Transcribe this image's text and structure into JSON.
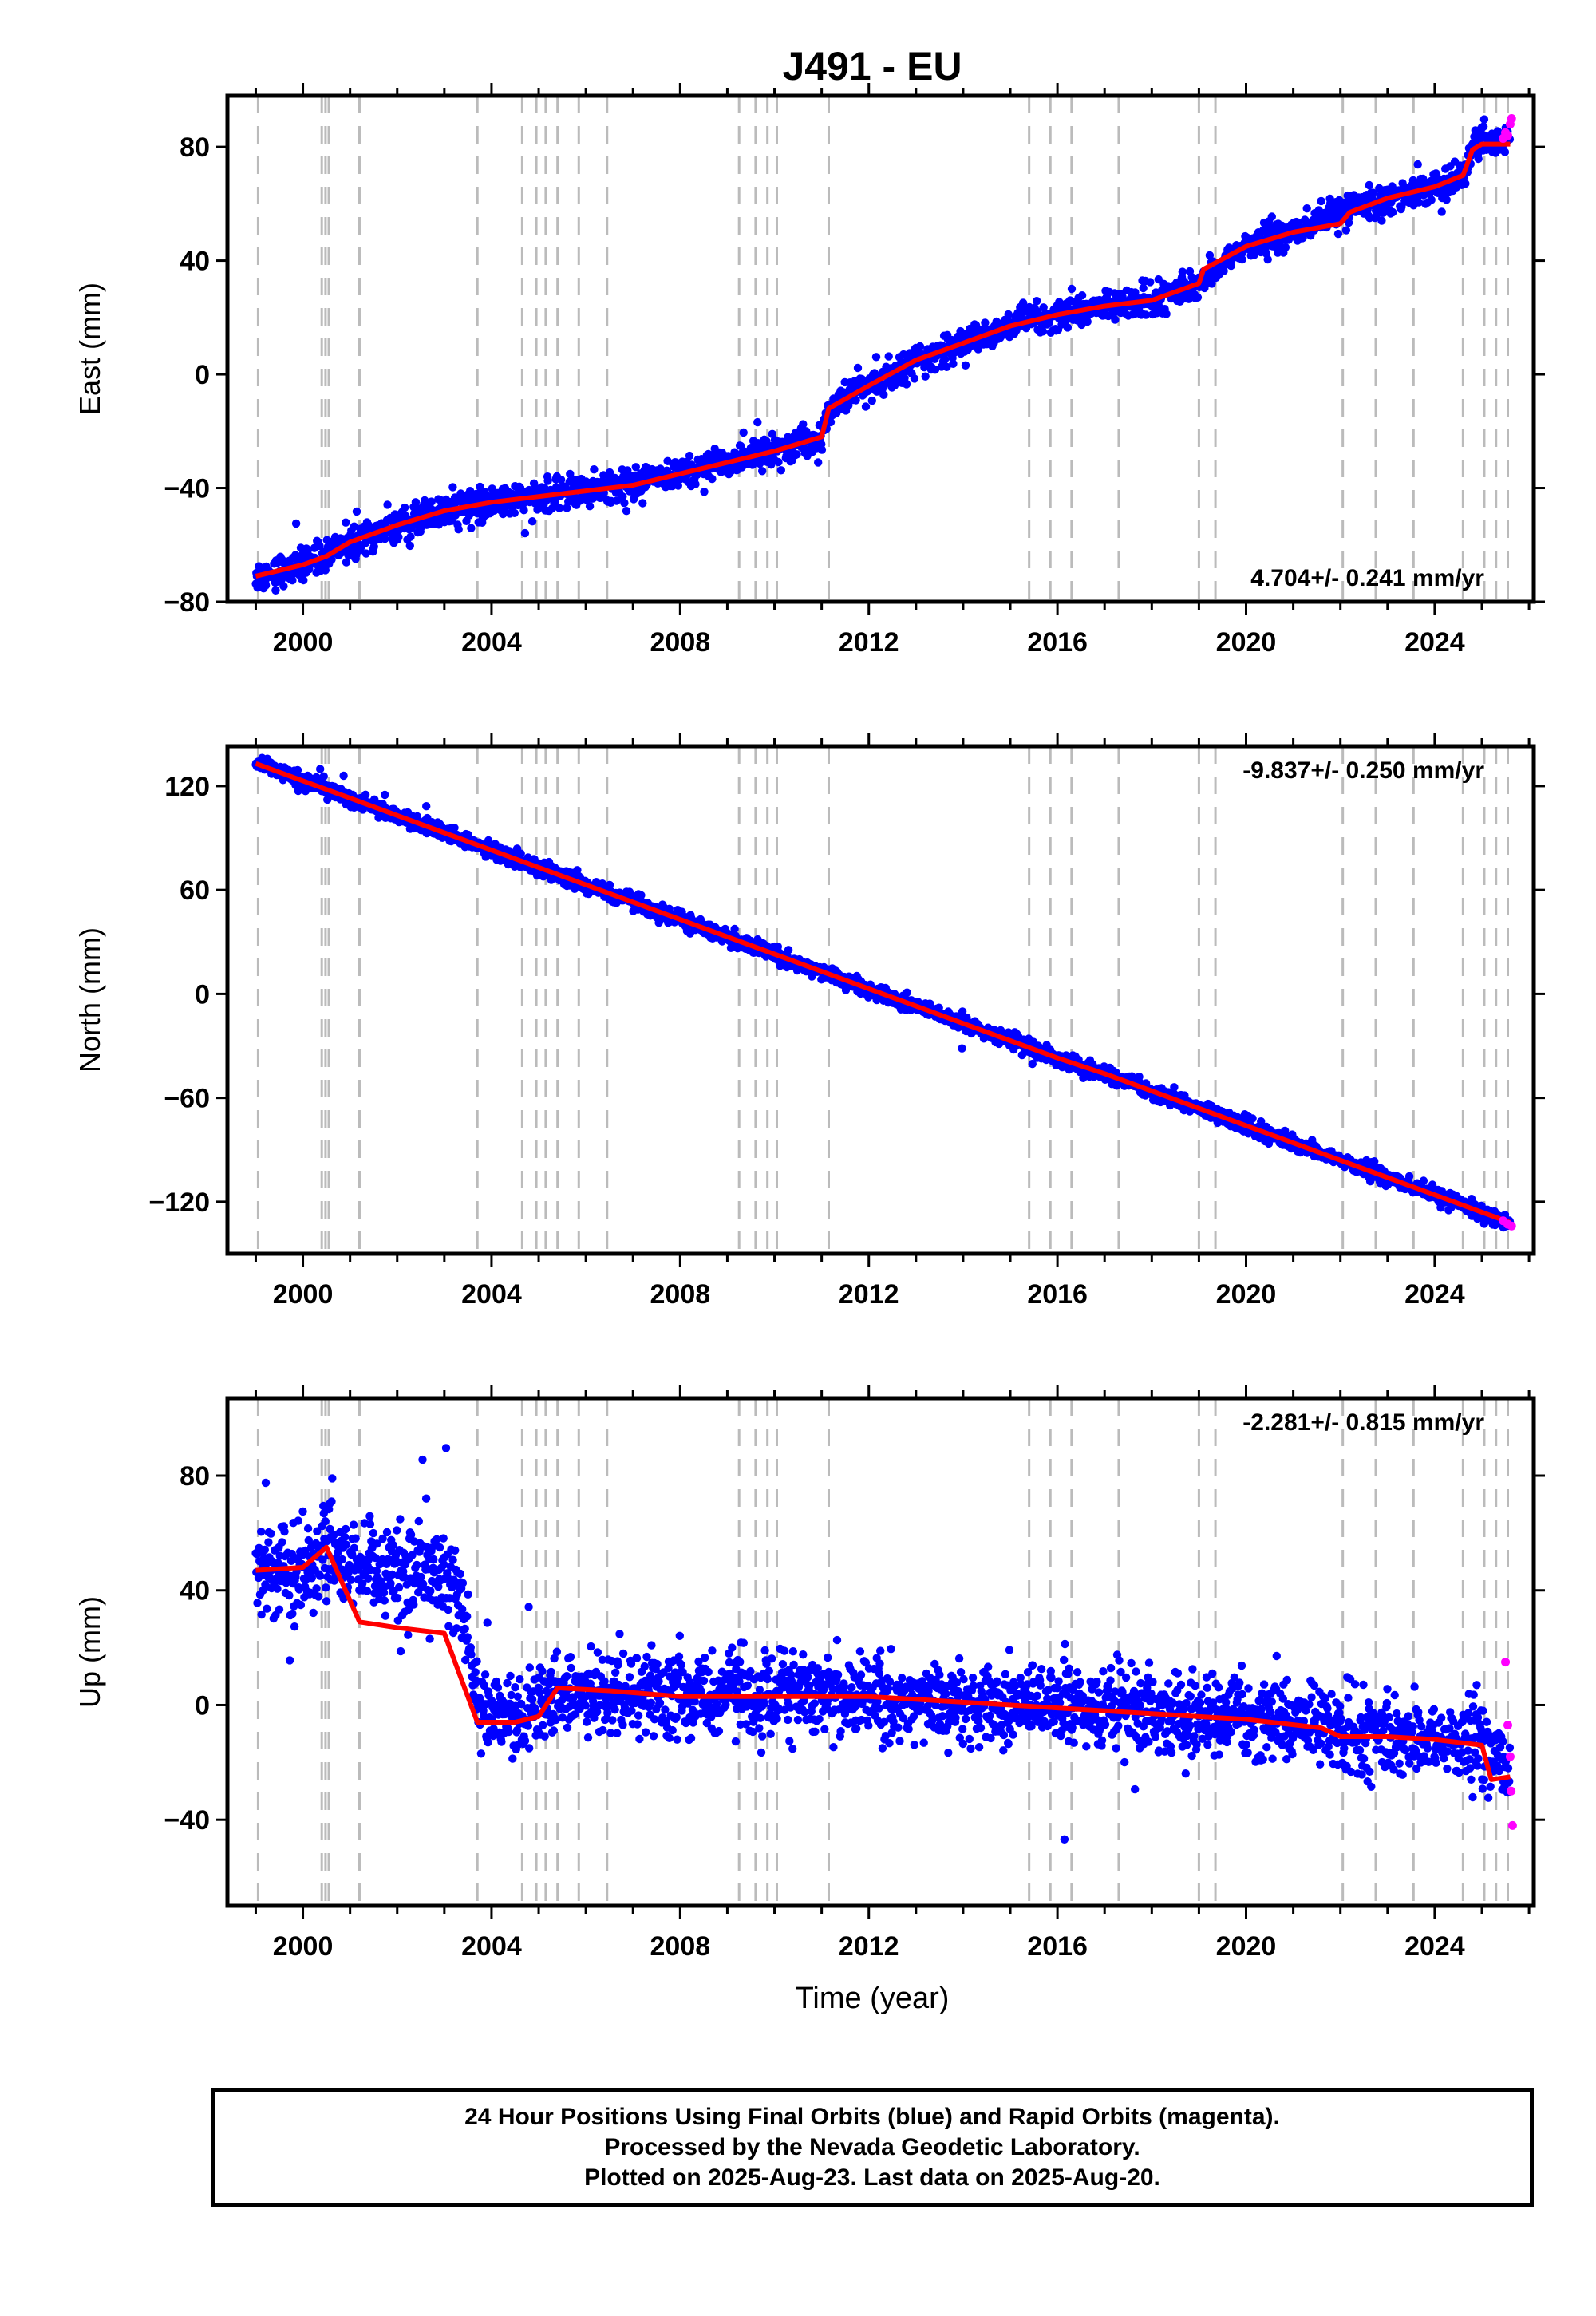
{
  "title": "J491 - EU",
  "xlabel": "Time (year)",
  "footer": {
    "line1": "24 Hour Positions Using Final Orbits (blue) and Rapid Orbits (magenta).",
    "line2": "Processed by the Nevada Geodetic Laboratory.",
    "line3": "Plotted on 2025-Aug-23. Last data on 2025-Aug-20."
  },
  "colors": {
    "final": "#0000ff",
    "rapid": "#ff00ff",
    "model": "#ff0000",
    "events": "#bbbbbb",
    "frame": "#000000"
  },
  "chart_data": [
    {
      "type": "scatter",
      "ylabel": "East (mm)",
      "rate_text": "4.704+/- 0.241 mm/yr",
      "rate_position": "bottom-right",
      "xlim": [
        1998.4,
        2026.1
      ],
      "ylim": [
        -80,
        98
      ],
      "x_ticks": [
        2000,
        2004,
        2008,
        2012,
        2016,
        2020,
        2024
      ],
      "y_ticks": [
        80,
        40,
        0,
        -40,
        -80
      ],
      "grid": false,
      "series": [
        {
          "name": "Final Orbits",
          "color": "#0000ff",
          "x": [
            1999.0,
            1999.5,
            2000.0,
            2000.5,
            2001.0,
            2002.0,
            2003.0,
            2004.0,
            2005.0,
            2006.0,
            2007.0,
            2008.0,
            2009.0,
            2010.0,
            2011.0,
            2011.15,
            2012.0,
            2013.0,
            2014.0,
            2015.0,
            2016.0,
            2017.0,
            2018.0,
            2019.0,
            2019.5,
            2020.0,
            2021.0,
            2022.0,
            2023.0,
            2024.0,
            2024.6,
            2024.8,
            2025.0,
            2025.6
          ],
          "y": [
            -71,
            -69,
            -67,
            -64,
            -59,
            -53,
            -48,
            -45,
            -43,
            -41,
            -39,
            -35,
            -31,
            -27,
            -22,
            -12,
            -4,
            5,
            11,
            17,
            21,
            24,
            26,
            32,
            39,
            45,
            50,
            57,
            62,
            66,
            70,
            80,
            81,
            82
          ]
        },
        {
          "name": "Rapid Orbits",
          "color": "#ff00ff",
          "x": [
            2025.45,
            2025.5,
            2025.55,
            2025.6,
            2025.63
          ],
          "y": [
            83,
            85,
            84,
            88,
            90
          ]
        },
        {
          "name": "Model",
          "color": "#ff0000",
          "x": [
            1999.0,
            1999.5,
            2000.0,
            2000.5,
            2001.0,
            2002.0,
            2003.0,
            2004.0,
            2005.0,
            2006.0,
            2007.0,
            2008.0,
            2009.0,
            2010.0,
            2011.0,
            2011.15,
            2012.0,
            2013.0,
            2014.0,
            2015.0,
            2016.0,
            2017.0,
            2018.0,
            2019.0,
            2019.1,
            2020.0,
            2021.0,
            2022.0,
            2022.2,
            2023.0,
            2024.0,
            2024.6,
            2024.8,
            2025.0,
            2025.6
          ],
          "y": [
            -71,
            -69,
            -67,
            -64,
            -59,
            -53,
            -48,
            -45,
            -43,
            -41,
            -39,
            -35,
            -31,
            -27,
            -22,
            -12,
            -4,
            5,
            11,
            17,
            21,
            24,
            26,
            32,
            37,
            45,
            50,
            53,
            57,
            62,
            66,
            70,
            79,
            81,
            81
          ]
        }
      ]
    },
    {
      "type": "scatter",
      "ylabel": "North (mm)",
      "rate_text": "-9.837+/- 0.250 mm/yr",
      "rate_position": "top-right",
      "xlim": [
        1998.4,
        2026.1
      ],
      "ylim": [
        -150,
        143
      ],
      "x_ticks": [
        2000,
        2004,
        2008,
        2012,
        2016,
        2020,
        2024
      ],
      "y_ticks": [
        120,
        60,
        0,
        -60,
        -120
      ],
      "grid": false,
      "series": [
        {
          "name": "Final Orbits",
          "color": "#0000ff",
          "x": [
            1999.0,
            2000.0,
            2001.0,
            2002.0,
            2003.0,
            2004.0,
            2005.0,
            2006.0,
            2007.0,
            2008.0,
            2009.0,
            2010.0,
            2011.0,
            2012.0,
            2013.0,
            2014.0,
            2015.0,
            2016.0,
            2017.0,
            2018.0,
            2019.0,
            2020.0,
            2021.0,
            2022.0,
            2023.0,
            2024.0,
            2025.0,
            2025.6
          ],
          "y": [
            133,
            123,
            113,
            103,
            93,
            83,
            73,
            63,
            53,
            43,
            33,
            23,
            13,
            3,
            -7,
            -17,
            -27,
            -37,
            -46,
            -56,
            -66,
            -76,
            -86,
            -96,
            -106,
            -116,
            -126,
            -132
          ]
        },
        {
          "name": "Rapid Orbits",
          "color": "#ff00ff",
          "x": [
            2025.45,
            2025.55,
            2025.63
          ],
          "y": [
            -131,
            -133,
            -134
          ]
        },
        {
          "name": "Model",
          "color": "#ff0000",
          "x": [
            1999.0,
            2000.0,
            2001.0,
            2002.0,
            2003.0,
            2004.0,
            2005.0,
            2006.0,
            2007.0,
            2008.0,
            2009.0,
            2010.0,
            2011.0,
            2012.0,
            2013.0,
            2014.0,
            2015.0,
            2016.0,
            2017.0,
            2018.0,
            2019.0,
            2020.0,
            2021.0,
            2022.0,
            2023.0,
            2024.0,
            2025.0,
            2025.6
          ],
          "y": [
            133,
            123,
            113,
            103,
            93,
            83,
            73,
            63,
            53,
            43,
            33,
            23,
            13,
            3,
            -7,
            -17,
            -27,
            -37,
            -46,
            -56,
            -66,
            -76,
            -86,
            -96,
            -106,
            -116,
            -126,
            -132
          ]
        }
      ]
    },
    {
      "type": "scatter",
      "ylabel": "Up (mm)",
      "rate_text": "-2.281+/- 0.815 mm/yr",
      "rate_position": "top-right",
      "xlim": [
        1998.4,
        2026.1
      ],
      "ylim": [
        -70,
        107
      ],
      "x_ticks": [
        2000,
        2004,
        2008,
        2012,
        2016,
        2020,
        2024
      ],
      "y_ticks": [
        80,
        40,
        0,
        -40
      ],
      "grid": false,
      "series": [
        {
          "name": "Final Orbits",
          "color": "#0000ff",
          "x": [
            1999.0,
            2000.0,
            2000.5,
            2001.2,
            2002.0,
            2003.0,
            2003.3,
            2003.7,
            2004.5,
            2005.0,
            2005.5,
            2006.5,
            2008.0,
            2010.0,
            2012.0,
            2014.0,
            2016.0,
            2018.0,
            2020.0,
            2021.5,
            2022.0,
            2023.0,
            2024.0,
            2025.0,
            2025.6
          ],
          "y": [
            47,
            48,
            52,
            46,
            45,
            45,
            44,
            0,
            -3,
            -2,
            4,
            5,
            3,
            4,
            3,
            1,
            0,
            -2,
            -4,
            -6,
            -10,
            -11,
            -12,
            -14,
            -22
          ]
        },
        {
          "name": "Rapid Orbits",
          "color": "#ff00ff",
          "x": [
            2025.5,
            2025.55,
            2025.6,
            2025.62,
            2025.65
          ],
          "y": [
            15,
            -7,
            -18,
            -30,
            -42
          ]
        },
        {
          "name": "Model",
          "color": "#ff0000",
          "x": [
            1999.0,
            2000.0,
            2000.5,
            2001.2,
            2002.0,
            2003.0,
            2003.7,
            2004.5,
            2005.0,
            2005.4,
            2006.5,
            2008.0,
            2010.0,
            2012.0,
            2014.0,
            2016.0,
            2018.0,
            2020.0,
            2021.6,
            2022.0,
            2023.0,
            2024.0,
            2025.0,
            2025.2,
            2025.6
          ],
          "y": [
            47,
            48,
            55,
            29,
            27,
            25,
            -6,
            -6,
            -4,
            6,
            5,
            3,
            3,
            3,
            1,
            -1,
            -3,
            -5,
            -8,
            -11,
            -11,
            -12,
            -14,
            -26,
            -25
          ]
        }
      ]
    }
  ],
  "event_lines": [
    1999.05,
    2000.4,
    2000.48,
    2000.55,
    2001.2,
    2003.7,
    2004.65,
    2004.95,
    2005.15,
    2005.4,
    2005.85,
    2006.45,
    2009.25,
    2009.6,
    2009.85,
    2010.05,
    2011.15,
    2015.4,
    2015.85,
    2016.3,
    2017.3,
    2019.0,
    2019.35,
    2022.05,
    2022.75,
    2023.55,
    2024.6,
    2025.05,
    2025.3,
    2025.55
  ]
}
